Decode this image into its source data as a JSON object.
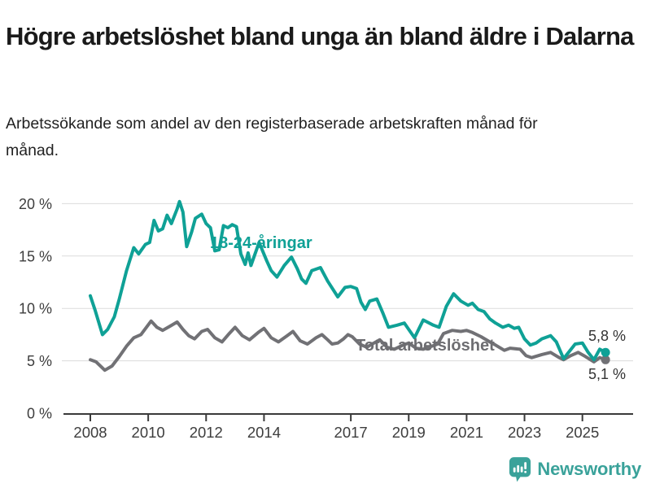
{
  "header": {
    "title": "Högre arbetslöshet bland unga än bland äldre i Dalarna",
    "subtitle": "Arbetssökande som andel av den registerbaserade arbetskraften månad för månad."
  },
  "chart_data": {
    "type": "line",
    "title": "Högre arbetslöshet bland unga än bland äldre i Dalarna",
    "subtitle": "Arbetssökande som andel av den registerbaserade arbetskraften månad för månad.",
    "x_unit": "decimal year, monthly data 2008 - late 2025",
    "ylim": [
      0,
      20
    ],
    "grid": true,
    "legend_position": "inline-annotations",
    "y_ticks": [
      [
        0,
        "0 %"
      ],
      [
        5,
        "5 %"
      ],
      [
        10,
        "10 %"
      ],
      [
        15,
        "15 %"
      ],
      [
        20,
        "20 %"
      ]
    ],
    "x_ticks": [
      [
        2008,
        "2008"
      ],
      [
        2010,
        "2010"
      ],
      [
        2012,
        "2012"
      ],
      [
        2014,
        "2014"
      ],
      [
        2017,
        "2017"
      ],
      [
        2019,
        "2019"
      ],
      [
        2021,
        "2021"
      ],
      [
        2023,
        "2023"
      ],
      [
        2025,
        "2025"
      ]
    ],
    "axis_color": "#3a3a3a",
    "gridline_color": "#dcdcdc",
    "tick_label_color": "#3d3d3d",
    "end_label_color": "#333333",
    "series": [
      {
        "name": "Total arbetslöshet",
        "color": "#717175",
        "end_label": "5,1 %",
        "end_value": 5.1,
        "points": [
          [
            2008.0,
            5.1
          ],
          [
            2008.2,
            4.9
          ],
          [
            2008.5,
            4.1
          ],
          [
            2008.75,
            4.5
          ],
          [
            2009.0,
            5.4
          ],
          [
            2009.25,
            6.4
          ],
          [
            2009.5,
            7.2
          ],
          [
            2009.75,
            7.5
          ],
          [
            2010.1,
            8.8
          ],
          [
            2010.3,
            8.2
          ],
          [
            2010.5,
            7.9
          ],
          [
            2010.75,
            8.3
          ],
          [
            2011.0,
            8.7
          ],
          [
            2011.2,
            8.0
          ],
          [
            2011.4,
            7.4
          ],
          [
            2011.6,
            7.1
          ],
          [
            2011.85,
            7.8
          ],
          [
            2012.05,
            8.0
          ],
          [
            2012.3,
            7.2
          ],
          [
            2012.55,
            6.8
          ],
          [
            2012.8,
            7.6
          ],
          [
            2013.0,
            8.2
          ],
          [
            2013.25,
            7.4
          ],
          [
            2013.5,
            7.0
          ],
          [
            2013.8,
            7.7
          ],
          [
            2014.0,
            8.1
          ],
          [
            2014.25,
            7.2
          ],
          [
            2014.5,
            6.8
          ],
          [
            2014.8,
            7.4
          ],
          [
            2015.0,
            7.8
          ],
          [
            2015.25,
            6.9
          ],
          [
            2015.5,
            6.6
          ],
          [
            2015.8,
            7.2
          ],
          [
            2016.0,
            7.5
          ],
          [
            2016.2,
            7.0
          ],
          [
            2016.35,
            6.6
          ],
          [
            2016.55,
            6.7
          ],
          [
            2016.75,
            7.1
          ],
          [
            2016.9,
            7.5
          ],
          [
            2017.05,
            7.3
          ],
          [
            2017.3,
            6.6
          ],
          [
            2017.55,
            6.3
          ],
          [
            2017.8,
            6.7
          ],
          [
            2018.0,
            7.0
          ],
          [
            2018.25,
            6.3
          ],
          [
            2018.5,
            6.1
          ],
          [
            2018.8,
            6.5
          ],
          [
            2019.0,
            6.7
          ],
          [
            2019.25,
            6.2
          ],
          [
            2019.5,
            6.1
          ],
          [
            2019.8,
            6.4
          ],
          [
            2020.0,
            6.6
          ],
          [
            2020.2,
            7.6
          ],
          [
            2020.5,
            7.9
          ],
          [
            2020.8,
            7.8
          ],
          [
            2021.0,
            7.9
          ],
          [
            2021.2,
            7.7
          ],
          [
            2021.5,
            7.3
          ],
          [
            2021.8,
            6.8
          ],
          [
            2022.0,
            6.5
          ],
          [
            2022.3,
            6.0
          ],
          [
            2022.5,
            6.2
          ],
          [
            2022.85,
            6.1
          ],
          [
            2023.05,
            5.5
          ],
          [
            2023.25,
            5.3
          ],
          [
            2023.6,
            5.6
          ],
          [
            2023.9,
            5.8
          ],
          [
            2024.2,
            5.3
          ],
          [
            2024.35,
            5.1
          ],
          [
            2024.6,
            5.5
          ],
          [
            2024.85,
            5.8
          ],
          [
            2025.05,
            5.5
          ],
          [
            2025.4,
            4.9
          ],
          [
            2025.6,
            5.3
          ],
          [
            2025.8,
            5.1
          ]
        ]
      },
      {
        "name": "18-24-åringar",
        "color": "#0fa196",
        "end_label": "5,8 %",
        "end_value": 5.8,
        "points": [
          [
            2008.0,
            11.2
          ],
          [
            2008.17,
            9.8
          ],
          [
            2008.42,
            7.5
          ],
          [
            2008.6,
            8.0
          ],
          [
            2008.83,
            9.2
          ],
          [
            2009.0,
            10.9
          ],
          [
            2009.25,
            13.6
          ],
          [
            2009.5,
            15.8
          ],
          [
            2009.67,
            15.2
          ],
          [
            2009.9,
            16.1
          ],
          [
            2010.05,
            16.3
          ],
          [
            2010.2,
            18.4
          ],
          [
            2010.35,
            17.4
          ],
          [
            2010.5,
            17.6
          ],
          [
            2010.65,
            18.9
          ],
          [
            2010.8,
            18.1
          ],
          [
            2011.0,
            19.5
          ],
          [
            2011.08,
            20.2
          ],
          [
            2011.2,
            19.2
          ],
          [
            2011.33,
            15.9
          ],
          [
            2011.5,
            17.3
          ],
          [
            2011.63,
            18.6
          ],
          [
            2011.85,
            19.0
          ],
          [
            2012.0,
            18.1
          ],
          [
            2012.15,
            17.7
          ],
          [
            2012.3,
            15.5
          ],
          [
            2012.45,
            15.6
          ],
          [
            2012.6,
            17.9
          ],
          [
            2012.75,
            17.7
          ],
          [
            2012.9,
            18.0
          ],
          [
            2013.05,
            17.8
          ],
          [
            2013.2,
            15.2
          ],
          [
            2013.35,
            14.2
          ],
          [
            2013.45,
            15.3
          ],
          [
            2013.55,
            14.1
          ],
          [
            2013.83,
            16.3
          ],
          [
            2014.1,
            14.5
          ],
          [
            2014.25,
            13.6
          ],
          [
            2014.45,
            13.0
          ],
          [
            2014.7,
            14.1
          ],
          [
            2014.95,
            14.9
          ],
          [
            2015.15,
            13.8
          ],
          [
            2015.3,
            12.8
          ],
          [
            2015.45,
            12.4
          ],
          [
            2015.65,
            13.6
          ],
          [
            2015.95,
            13.9
          ],
          [
            2016.2,
            12.6
          ],
          [
            2016.55,
            11.1
          ],
          [
            2016.8,
            12.0
          ],
          [
            2017.0,
            12.1
          ],
          [
            2017.2,
            11.9
          ],
          [
            2017.35,
            10.6
          ],
          [
            2017.5,
            9.9
          ],
          [
            2017.65,
            10.7
          ],
          [
            2017.9,
            10.9
          ],
          [
            2018.1,
            9.6
          ],
          [
            2018.3,
            8.2
          ],
          [
            2018.6,
            8.4
          ],
          [
            2018.85,
            8.6
          ],
          [
            2019.2,
            7.2
          ],
          [
            2019.5,
            8.9
          ],
          [
            2019.85,
            8.4
          ],
          [
            2020.05,
            8.2
          ],
          [
            2020.3,
            10.2
          ],
          [
            2020.55,
            11.4
          ],
          [
            2020.8,
            10.7
          ],
          [
            2021.05,
            10.3
          ],
          [
            2021.2,
            10.5
          ],
          [
            2021.4,
            9.9
          ],
          [
            2021.6,
            9.7
          ],
          [
            2021.8,
            9.0
          ],
          [
            2022.0,
            8.6
          ],
          [
            2022.25,
            8.2
          ],
          [
            2022.45,
            8.4
          ],
          [
            2022.65,
            8.1
          ],
          [
            2022.8,
            8.2
          ],
          [
            2023.0,
            7.1
          ],
          [
            2023.2,
            6.5
          ],
          [
            2023.4,
            6.7
          ],
          [
            2023.6,
            7.1
          ],
          [
            2023.9,
            7.4
          ],
          [
            2024.1,
            6.8
          ],
          [
            2024.35,
            5.2
          ],
          [
            2024.55,
            5.9
          ],
          [
            2024.75,
            6.6
          ],
          [
            2025.0,
            6.7
          ],
          [
            2025.2,
            5.8
          ],
          [
            2025.4,
            5.1
          ],
          [
            2025.6,
            6.1
          ],
          [
            2025.8,
            5.8
          ]
        ]
      }
    ]
  },
  "footer": {
    "brand": "Newsworthy",
    "brand_color": "#3aa29a",
    "logo_icon": "bar-chart-speech-bubble"
  }
}
